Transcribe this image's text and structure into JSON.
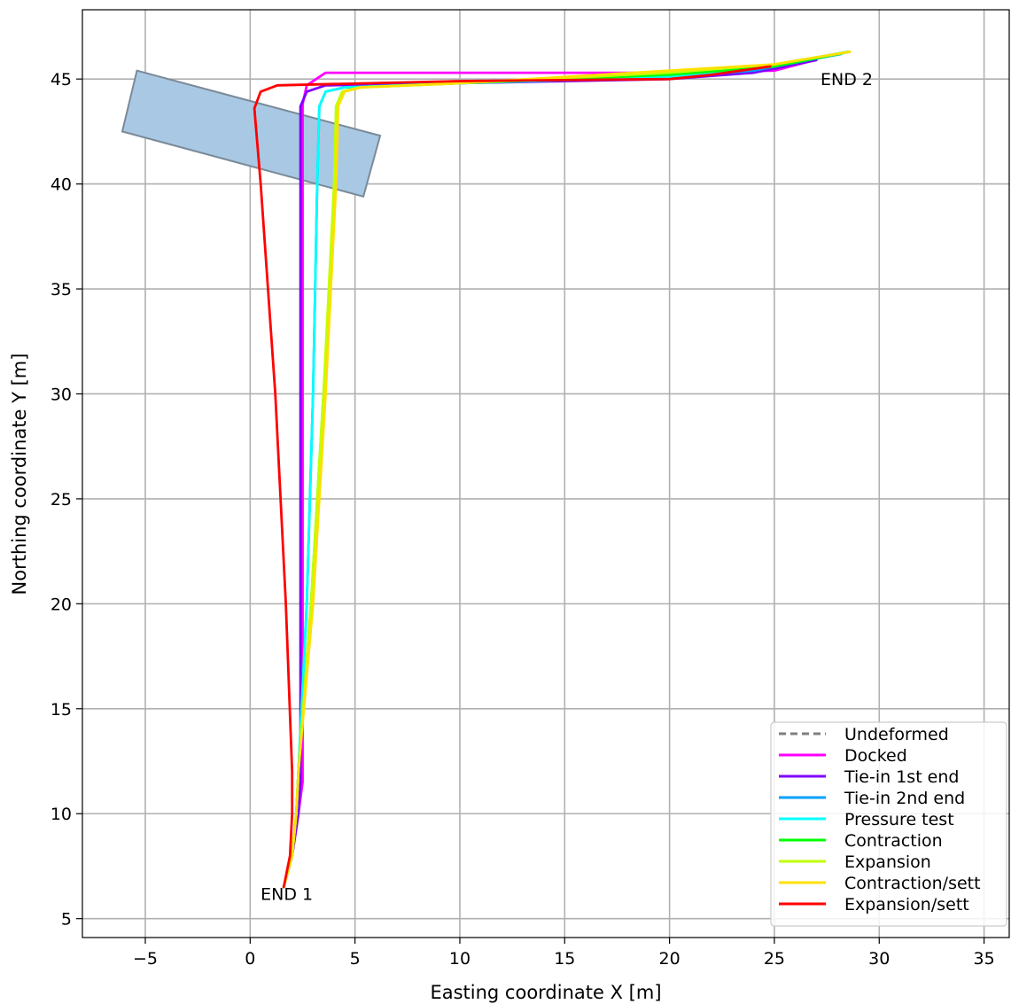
{
  "chart_data": {
    "type": "line",
    "xlabel": "Easting coordinate X [m]",
    "ylabel": "Northing coordinate Y [m]",
    "xlim": [
      -8,
      36.2
    ],
    "ylim": [
      4.1,
      48.3
    ],
    "xticks": [
      "−5",
      "0",
      "5",
      "10",
      "15",
      "20",
      "25",
      "30",
      "35"
    ],
    "yticks": [
      "5",
      "10",
      "15",
      "20",
      "25",
      "30",
      "35",
      "40",
      "45"
    ],
    "grid": true,
    "legend_position": "lower-right",
    "annotations": [
      {
        "text": "END 1",
        "x": 0.5,
        "y": 6.2
      },
      {
        "text": "END 2",
        "x": 27.2,
        "y": 45.0
      }
    ],
    "structure": {
      "corners": [
        [
          -5.4,
          45.4
        ],
        [
          6.2,
          42.3
        ],
        [
          5.4,
          39.4
        ],
        [
          -6.1,
          42.5
        ]
      ],
      "fill": "#a9c8e3",
      "stroke": "#7a8a98"
    },
    "series": [
      {
        "name": "Undeformed",
        "color": "#7f7f7f",
        "dash": true,
        "points": []
      },
      {
        "name": "Docked",
        "color": "#ff00ff",
        "points": [
          [
            1.6,
            6.5
          ],
          [
            2.0,
            8.0
          ],
          [
            2.3,
            10.0
          ],
          [
            2.5,
            11.5
          ],
          [
            2.5,
            20
          ],
          [
            2.5,
            30
          ],
          [
            2.5,
            40
          ],
          [
            2.5,
            43.8
          ],
          [
            2.7,
            44.7
          ],
          [
            3.6,
            45.3
          ],
          [
            10,
            45.3
          ],
          [
            20,
            45.3
          ],
          [
            25,
            45.4
          ],
          [
            26.9,
            45.9
          ]
        ]
      },
      {
        "name": "Tie-in 1st end",
        "color": "#7f00ff",
        "points": [
          [
            1.6,
            6.5
          ],
          [
            2.0,
            8.0
          ],
          [
            2.3,
            10.0
          ],
          [
            2.4,
            11.5
          ],
          [
            2.4,
            20
          ],
          [
            2.4,
            30
          ],
          [
            2.4,
            40
          ],
          [
            2.4,
            43.7
          ],
          [
            2.7,
            44.4
          ],
          [
            3.6,
            44.7
          ],
          [
            10,
            44.8
          ],
          [
            20,
            45.0
          ],
          [
            24,
            45.3
          ],
          [
            27.0,
            45.9
          ]
        ]
      },
      {
        "name": "Tie-in 2nd end",
        "color": "#00a0ff",
        "points": [
          [
            1.6,
            6.5
          ],
          [
            2.0,
            8.0
          ],
          [
            2.2,
            10.0
          ],
          [
            2.3,
            12.0
          ],
          [
            2.7,
            20
          ],
          [
            3.0,
            30
          ],
          [
            3.2,
            40
          ],
          [
            3.3,
            43.7
          ],
          [
            3.6,
            44.4
          ],
          [
            4.5,
            44.6
          ],
          [
            10,
            44.8
          ],
          [
            20,
            45.1
          ],
          [
            24,
            45.4
          ],
          [
            28.2,
            46.2
          ]
        ]
      },
      {
        "name": "Pressure test",
        "color": "#00ffff",
        "points": [
          [
            1.6,
            6.5
          ],
          [
            2.0,
            8.0
          ],
          [
            2.2,
            10.0
          ],
          [
            2.3,
            12.0
          ],
          [
            2.7,
            20
          ],
          [
            3.0,
            30
          ],
          [
            3.2,
            40
          ],
          [
            3.3,
            43.7
          ],
          [
            3.6,
            44.4
          ],
          [
            4.5,
            44.6
          ],
          [
            10,
            44.8
          ],
          [
            20,
            45.1
          ],
          [
            24,
            45.5
          ],
          [
            28.5,
            46.3
          ]
        ]
      },
      {
        "name": "Contraction",
        "color": "#00ff00",
        "points": [
          [
            1.6,
            6.5
          ],
          [
            2.0,
            8.0
          ],
          [
            2.2,
            10.0
          ],
          [
            2.3,
            12.0
          ],
          [
            2.9,
            20
          ],
          [
            3.5,
            30
          ],
          [
            4.1,
            40
          ],
          [
            4.1,
            43.7
          ],
          [
            4.4,
            44.4
          ],
          [
            5.2,
            44.6
          ],
          [
            10,
            44.8
          ],
          [
            20,
            45.2
          ],
          [
            25,
            45.6
          ],
          [
            28.6,
            46.3
          ]
        ]
      },
      {
        "name": "Expansion",
        "color": "#c0ff00",
        "points": [
          [
            1.6,
            6.5
          ],
          [
            2.0,
            8.0
          ],
          [
            2.2,
            10.0
          ],
          [
            2.3,
            12.0
          ],
          [
            2.9,
            20
          ],
          [
            3.5,
            30
          ],
          [
            4.0,
            40
          ],
          [
            4.1,
            43.7
          ],
          [
            4.4,
            44.4
          ],
          [
            5.2,
            44.6
          ],
          [
            10,
            44.8
          ],
          [
            20,
            45.3
          ],
          [
            25,
            45.7
          ],
          [
            28.6,
            46.3
          ]
        ]
      },
      {
        "name": "Contraction/sett",
        "color": "#ffe000",
        "points": [
          [
            1.6,
            6.5
          ],
          [
            2.0,
            8.0
          ],
          [
            2.2,
            10.0
          ],
          [
            2.3,
            12.0
          ],
          [
            3.0,
            20
          ],
          [
            3.6,
            30
          ],
          [
            4.1,
            40
          ],
          [
            4.2,
            43.7
          ],
          [
            4.5,
            44.4
          ],
          [
            5.3,
            44.6
          ],
          [
            10,
            44.8
          ],
          [
            20,
            45.4
          ],
          [
            25,
            45.7
          ],
          [
            28.6,
            46.3
          ]
        ]
      },
      {
        "name": "Expansion/sett",
        "color": "#ff0000",
        "points": [
          [
            1.6,
            6.5
          ],
          [
            1.9,
            8.0
          ],
          [
            2.0,
            10.0
          ],
          [
            2.0,
            12.0
          ],
          [
            1.7,
            20
          ],
          [
            1.2,
            30
          ],
          [
            0.5,
            40
          ],
          [
            0.2,
            43.6
          ],
          [
            0.5,
            44.4
          ],
          [
            1.3,
            44.7
          ],
          [
            10,
            44.9
          ],
          [
            20,
            45.0
          ],
          [
            22,
            45.2
          ],
          [
            24.8,
            45.6
          ]
        ]
      }
    ]
  }
}
